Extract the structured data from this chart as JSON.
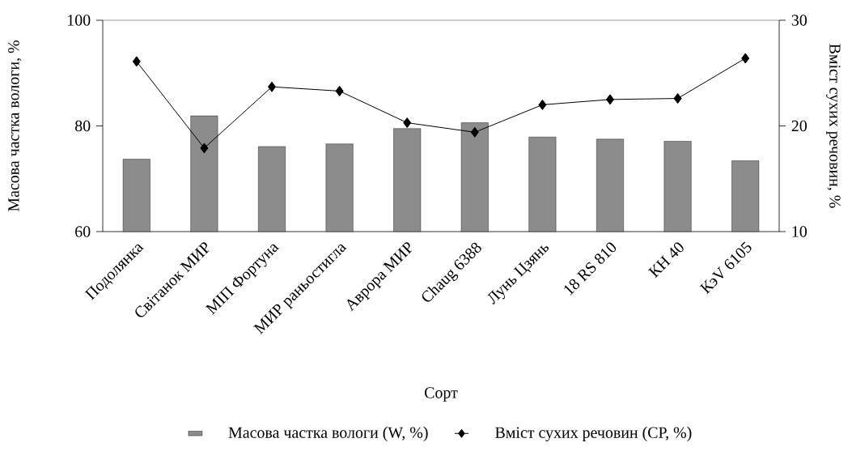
{
  "chart_data": {
    "type": "bar",
    "xlabel": "Сорт",
    "ylabel": "Масова частка вологи, %",
    "y2label": "Вміст сухих речовин, %",
    "categories": [
      "Подолянка",
      "Світанок МИР",
      "МІП Фортуна",
      "МИР раньостигла",
      "Аврора МИР",
      "Chaug 6388",
      "Лунь Цзянь",
      "18 RS 810",
      "КН 40",
      "КэV 6105"
    ],
    "series": [
      {
        "name": "Масова частка вологи (W, %)",
        "color": "#8c8c8c",
        "values": [
          73.7,
          81.9,
          76.1,
          76.6,
          79.5,
          80.6,
          77.9,
          77.5,
          77.1,
          73.4
        ]
      },
      {
        "name": "Вміст сухих речовин (СР, %)",
        "type": "line",
        "axis": "y2",
        "color": "#000000",
        "values": [
          26.1,
          17.9,
          23.7,
          23.3,
          20.3,
          19.4,
          22.0,
          22.5,
          22.6,
          26.4
        ]
      }
    ],
    "ylim": [
      60,
      100
    ],
    "yticks": [
      60,
      80,
      100
    ],
    "y2lim": [
      10,
      30
    ],
    "y2ticks": [
      10,
      20,
      30
    ],
    "marker": "diamond",
    "line_style": "solid",
    "legend": "bottom"
  }
}
